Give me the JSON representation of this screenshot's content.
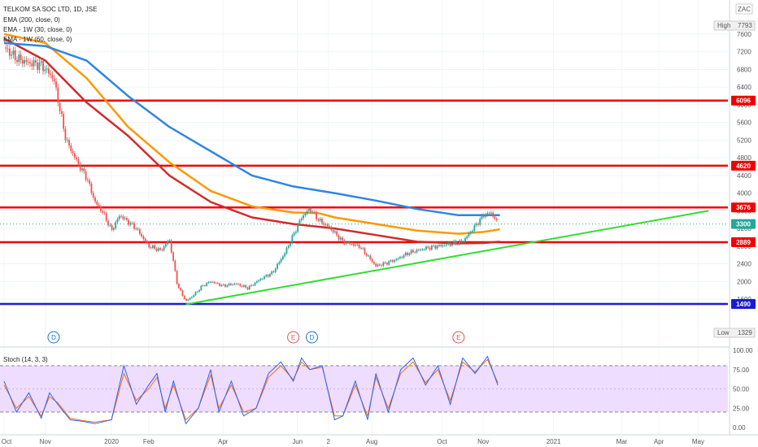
{
  "header": {
    "title": "TELKOM SA SOC LTD, 1D, JSE",
    "currency": "ZAC",
    "legend": [
      "EMA (200, close, 0)",
      "EMA - 1W (30, close, 0)",
      "EMA - 1W (60, close, 0)"
    ]
  },
  "info": {
    "high_label": "High",
    "high_value": "7793",
    "low_label": "Low",
    "low_value": "1329"
  },
  "chart_data": {
    "type": "line",
    "price_axis": {
      "ticks": [
        7600,
        7200,
        6800,
        6400,
        6000,
        5600,
        5200,
        4800,
        4400,
        4000,
        3600,
        3200,
        2800,
        2400,
        2000,
        1600
      ]
    },
    "x_axis": {
      "labels": [
        "Oct",
        "Nov",
        "2020",
        "Feb",
        "Apr",
        "Jun",
        "2",
        "Aug",
        "Oct",
        "Nov",
        "2021",
        "Mar",
        "Apr",
        "May"
      ]
    },
    "price_tags": [
      {
        "value": 6096,
        "label": "6096",
        "color": "#f20000"
      },
      {
        "value": 4620,
        "label": "4620",
        "color": "#f20000"
      },
      {
        "value": 3676,
        "label": "3676",
        "color": "#f20000"
      },
      {
        "value": 3300,
        "label": "3300",
        "color": "#26a69a"
      },
      {
        "value": 2889,
        "label": "2889",
        "color": "#f20000"
      },
      {
        "value": 1490,
        "label": "1490",
        "color": "#1a1ad6"
      }
    ],
    "horizontal_lines": [
      {
        "value": 6096,
        "color": "#f20000"
      },
      {
        "value": 4620,
        "color": "#f20000"
      },
      {
        "value": 3676,
        "color": "#f20000"
      },
      {
        "value": 2889,
        "color": "#f20000"
      },
      {
        "value": 1490,
        "color": "#1a1ad6"
      }
    ],
    "trendline": {
      "color": "#33dd33",
      "from": {
        "month": 4.4,
        "price": 1480
      },
      "to": {
        "month": 17.05,
        "price": 3600
      }
    },
    "close_series": {
      "x_months": [
        0.0,
        0.3,
        0.6,
        0.9,
        1.2,
        1.5,
        1.8,
        2.0,
        2.2,
        2.4,
        2.6,
        2.8,
        3.0,
        3.2,
        3.5,
        3.8,
        4.0,
        4.2,
        4.4,
        4.6,
        4.8,
        5.0,
        5.3,
        5.6,
        5.9,
        6.2,
        6.5,
        6.8,
        7.0,
        7.2,
        7.4,
        7.6,
        7.9,
        8.2,
        8.6,
        9.0,
        9.2,
        9.5,
        9.8,
        10.2,
        10.5,
        10.8,
        11.1,
        11.4,
        11.6,
        11.8,
        11.95
      ],
      "y_price": [
        7300,
        7050,
        6950,
        6900,
        6600,
        5200,
        4650,
        4350,
        3800,
        3550,
        3150,
        3500,
        3350,
        3200,
        2800,
        2700,
        2950,
        1900,
        1550,
        1700,
        1900,
        2000,
        1900,
        1950,
        1850,
        2050,
        2200,
        2650,
        3050,
        3450,
        3650,
        3400,
        3200,
        2900,
        2800,
        2350,
        2400,
        2500,
        2650,
        2750,
        2800,
        2850,
        2900,
        3250,
        3500,
        3550,
        3300
      ]
    },
    "ema200": {
      "x_months": [
        0.0,
        1.0,
        2.0,
        3.0,
        4.0,
        5.0,
        6.0,
        7.0,
        8.0,
        9.0,
        10.0,
        11.0,
        11.6,
        12.0
      ],
      "y_price": [
        7400,
        7330,
        7000,
        6200,
        5500,
        4950,
        4400,
        4150,
        4000,
        3830,
        3640,
        3500,
        3500,
        3500
      ],
      "color": "#2f86e0"
    },
    "ema1w30": {
      "x_months": [
        0.0,
        1.0,
        2.0,
        3.0,
        4.0,
        5.0,
        6.0,
        7.0,
        7.6,
        8.0,
        9.0,
        10.0,
        11.0,
        11.6,
        12.0
      ],
      "y_price": [
        7600,
        7400,
        6600,
        5500,
        4700,
        4050,
        3700,
        3560,
        3550,
        3450,
        3300,
        3150,
        3080,
        3120,
        3180
      ],
      "color": "#ff9800"
    },
    "ema1w60": {
      "x_months": [
        0.0,
        1.0,
        2.0,
        3.0,
        4.0,
        5.0,
        6.0,
        7.0,
        7.5,
        8.0,
        9.0,
        10.0,
        11.0,
        11.6,
        12.0
      ],
      "y_price": [
        7500,
        7000,
        6050,
        5300,
        4400,
        3800,
        3450,
        3300,
        3250,
        3200,
        3050,
        2900,
        2860,
        2870,
        2900
      ],
      "color": "#d02b2b"
    },
    "events": [
      {
        "month": 1.2,
        "label": "D",
        "color": "#1976d2"
      },
      {
        "month": 7.0,
        "label": "E",
        "color": "#e05555"
      },
      {
        "month": 7.45,
        "label": "D",
        "color": "#1976d2"
      },
      {
        "month": 11.0,
        "label": "E",
        "color": "#e05555"
      }
    ],
    "stoch": {
      "label": "Stoch (14, 3, 3)",
      "ticks": [
        100,
        75,
        50,
        25,
        0
      ],
      "tick_labels": [
        "100.00",
        "75.00",
        "50.00",
        "25.00",
        "0.00"
      ],
      "upper_band": 80,
      "lower_band": 20,
      "k_color": "#2962ff",
      "d_color": "#ff6d00",
      "x_months": [
        0.0,
        0.3,
        0.6,
        0.9,
        1.1,
        1.3,
        1.6,
        1.9,
        2.2,
        2.6,
        2.9,
        3.2,
        3.5,
        3.7,
        3.9,
        4.1,
        4.4,
        4.7,
        5.0,
        5.2,
        5.5,
        5.8,
        6.1,
        6.4,
        6.7,
        7.0,
        7.2,
        7.4,
        7.7,
        8.0,
        8.2,
        8.5,
        8.8,
        9.0,
        9.3,
        9.6,
        9.9,
        10.2,
        10.5,
        10.8,
        11.1,
        11.4,
        11.7,
        11.95
      ],
      "k_values": [
        60,
        20,
        45,
        12,
        45,
        30,
        10,
        8,
        5,
        10,
        80,
        30,
        55,
        70,
        20,
        60,
        5,
        25,
        75,
        20,
        60,
        15,
        25,
        70,
        85,
        60,
        90,
        75,
        80,
        10,
        15,
        60,
        10,
        70,
        20,
        75,
        90,
        55,
        80,
        30,
        90,
        70,
        92,
        55
      ],
      "d_values": [
        55,
        25,
        40,
        15,
        40,
        32,
        12,
        9,
        7,
        10,
        70,
        35,
        50,
        65,
        25,
        55,
        10,
        25,
        68,
        25,
        55,
        20,
        25,
        65,
        80,
        62,
        85,
        75,
        78,
        15,
        15,
        55,
        15,
        65,
        25,
        70,
        85,
        58,
        75,
        35,
        85,
        72,
        88,
        58
      ]
    }
  }
}
